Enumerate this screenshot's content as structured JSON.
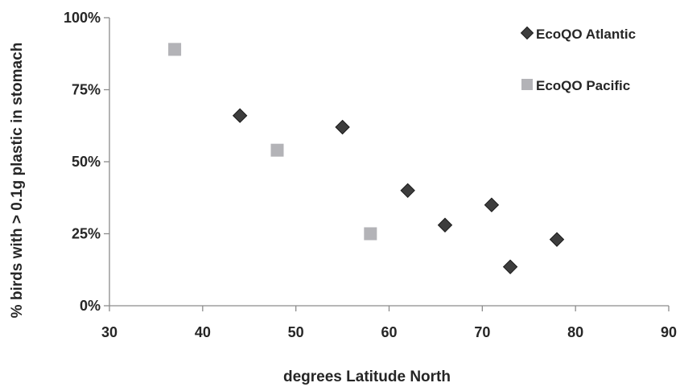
{
  "chart_data": {
    "type": "scatter",
    "title": "",
    "xlabel": "degrees Latitude North",
    "ylabel": "% birds with > 0.1g  plastic in stomach",
    "xlim": [
      30,
      90
    ],
    "ylim": [
      0,
      100
    ],
    "x_ticks": [
      "30",
      "40",
      "50",
      "60",
      "70",
      "80",
      "90"
    ],
    "y_ticks": [
      "0%",
      "25%",
      "50%",
      "75%",
      "100%"
    ],
    "grid": false,
    "legend_position": "top-right",
    "series": [
      {
        "name": "EcoQO Atlantic",
        "marker": "diamond",
        "color": "#3d3d3d",
        "points": [
          {
            "x": 44,
            "y": 66
          },
          {
            "x": 55,
            "y": 62
          },
          {
            "x": 62,
            "y": 40
          },
          {
            "x": 66,
            "y": 28
          },
          {
            "x": 71,
            "y": 35
          },
          {
            "x": 73,
            "y": 13.5
          },
          {
            "x": 78,
            "y": 23
          }
        ]
      },
      {
        "name": "EcoQO Pacific",
        "marker": "square",
        "color": "#b3b3b7",
        "points": [
          {
            "x": 37,
            "y": 89
          },
          {
            "x": 48,
            "y": 54
          },
          {
            "x": 58,
            "y": 25
          }
        ]
      }
    ]
  }
}
